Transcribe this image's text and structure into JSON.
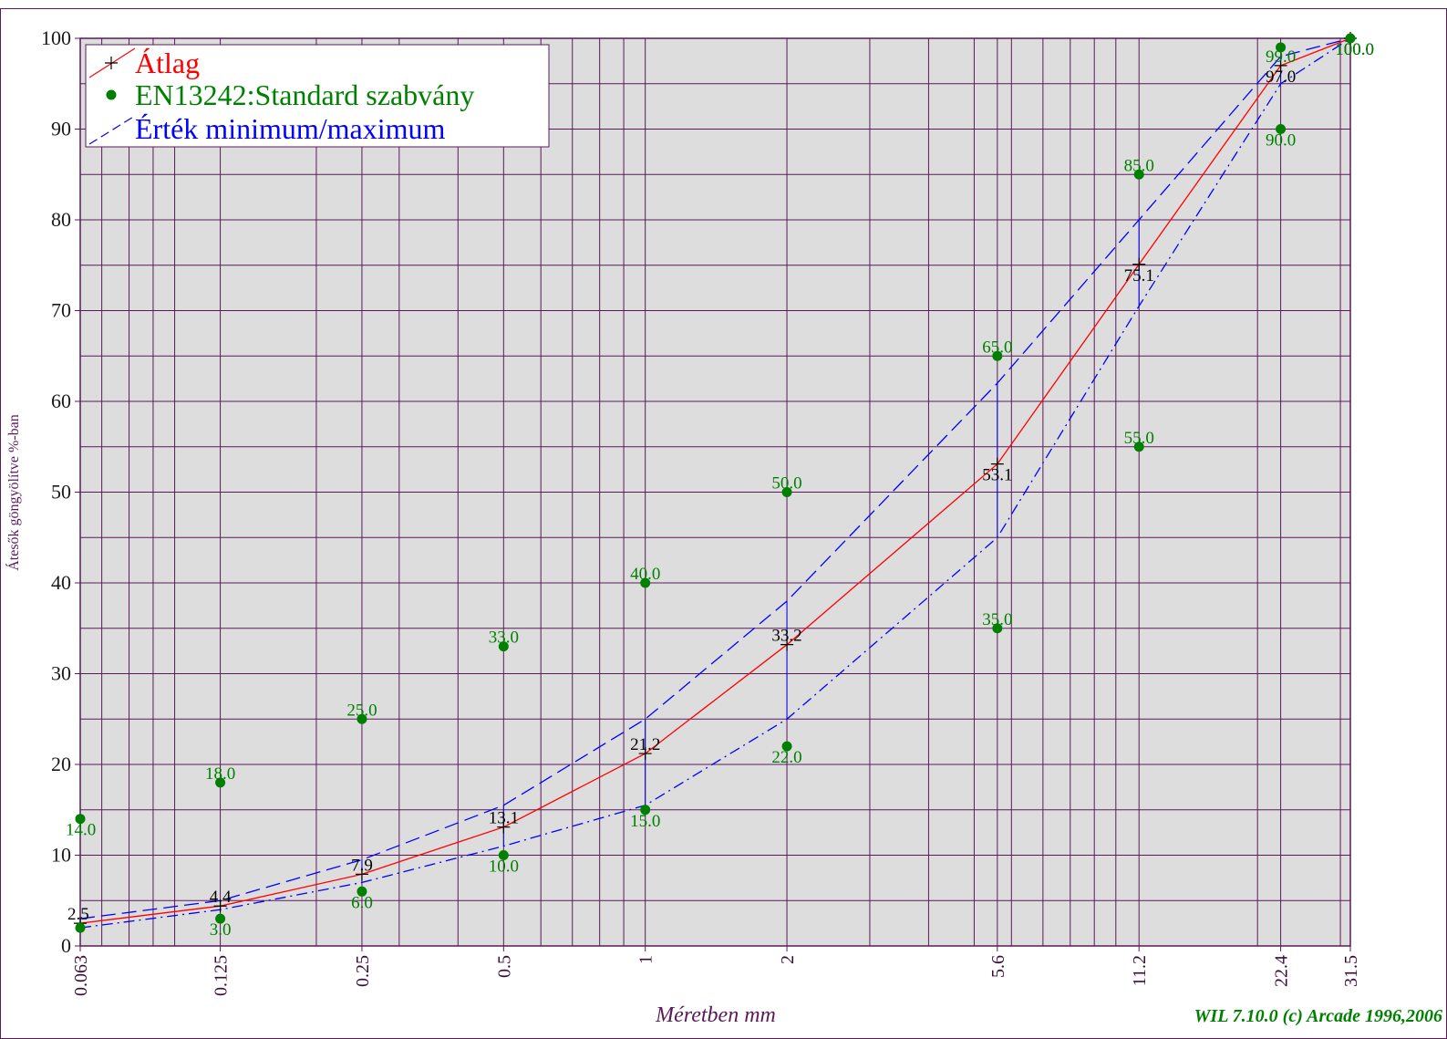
{
  "chart_data": {
    "type": "line",
    "title": "",
    "xlabel": "Méretben mm",
    "ylabel": "Átesők göngyölítve %-ban",
    "credit": "WIL 7.10.0 (c) Arcade 1996,2006",
    "x_scale": "log",
    "ylim": [
      0,
      100
    ],
    "y_ticks": [
      "0",
      "10",
      "20",
      "30",
      "40",
      "50",
      "60",
      "70",
      "80",
      "90",
      "100"
    ],
    "x": [
      0.063,
      0.125,
      0.25,
      0.5,
      1,
      2,
      5.6,
      11.2,
      22.4,
      31.5
    ],
    "x_tick_labels": [
      "0.063",
      "0.125",
      "0.25",
      "0.5",
      "1",
      "2",
      "5.6",
      "11.2",
      "22.4",
      "31.5"
    ],
    "grid": true,
    "legend_position": "top-left",
    "colors": {
      "plot_bg": "#dddddd",
      "grid": "#5a1a5a",
      "average": "#ff0000",
      "standard": "#008000",
      "minmax": "#0000ff"
    },
    "series": [
      {
        "name": "Átlag",
        "type": "line",
        "values": [
          2.5,
          4.4,
          7.9,
          13.1,
          21.2,
          33.2,
          53.1,
          75.1,
          97.0,
          100.0
        ],
        "labels": [
          "2.5",
          "4.4",
          "7.9",
          "13.1",
          "21.2",
          "33.2",
          "53.1",
          "75.1",
          "97.0",
          "100.0"
        ]
      },
      {
        "name": "EN13242:Standard szabvány",
        "type": "scatter",
        "points": [
          {
            "x": 0.063,
            "y": 2.0,
            "label": ""
          },
          {
            "x": 0.063,
            "y": 14.0,
            "label": "14.0"
          },
          {
            "x": 0.125,
            "y": 3.0,
            "label": "3.0"
          },
          {
            "x": 0.125,
            "y": 18.0,
            "label": "18.0"
          },
          {
            "x": 0.25,
            "y": 6.0,
            "label": "6.0"
          },
          {
            "x": 0.25,
            "y": 25.0,
            "label": "25.0"
          },
          {
            "x": 0.5,
            "y": 10.0,
            "label": "10.0"
          },
          {
            "x": 0.5,
            "y": 33.0,
            "label": "33.0"
          },
          {
            "x": 1,
            "y": 15.0,
            "label": "15.0"
          },
          {
            "x": 1,
            "y": 40.0,
            "label": "40.0"
          },
          {
            "x": 2,
            "y": 22.0,
            "label": "22.0"
          },
          {
            "x": 2,
            "y": 50.0,
            "label": "50.0"
          },
          {
            "x": 5.6,
            "y": 35.0,
            "label": "35.0"
          },
          {
            "x": 5.6,
            "y": 65.0,
            "label": "65.0"
          },
          {
            "x": 11.2,
            "y": 55.0,
            "label": "55.0"
          },
          {
            "x": 11.2,
            "y": 85.0,
            "label": "85.0"
          },
          {
            "x": 22.4,
            "y": 90.0,
            "label": "90.0"
          },
          {
            "x": 22.4,
            "y": 99.0,
            "label": "99.0"
          },
          {
            "x": 31.5,
            "y": 100.0,
            "label": "100.0"
          }
        ]
      },
      {
        "name": "Érték minimum/maximum",
        "type": "range",
        "max": [
          3.0,
          5.0,
          9.5,
          15.5,
          25.0,
          38.0,
          62.0,
          80.0,
          98.0,
          100.0
        ],
        "min": [
          2.0,
          4.0,
          7.0,
          11.0,
          15.5,
          25.0,
          45.0,
          70.5,
          95.0,
          100.0
        ]
      }
    ],
    "legend": [
      "Átlag",
      "EN13242:Standard szabvány",
      "Érték minimum/maximum"
    ]
  }
}
